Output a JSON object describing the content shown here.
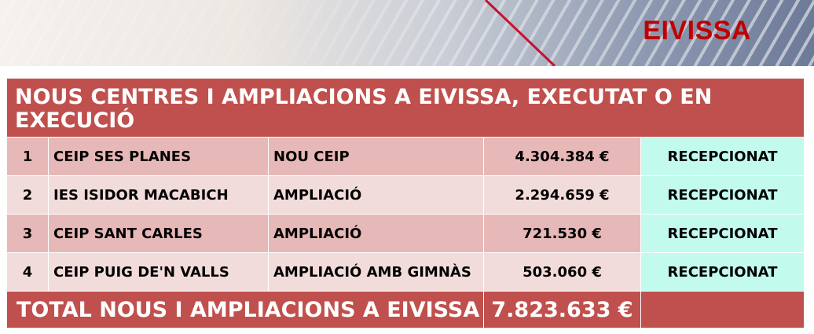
{
  "banner": {
    "region": "EIVISSA",
    "accent_color": "#c00000"
  },
  "table": {
    "title": "NOUS CENTRES I AMPLIACIONS A EIVISSA, EXECUTAT O EN EXECUCIÓ",
    "header_color": "#c0504d",
    "rows": [
      {
        "num": "1",
        "centre": "CEIP SES PLANES",
        "type": "NOU CEIP",
        "amount": "4.304.384 €",
        "status": "RECEPCIONAT"
      },
      {
        "num": "2",
        "centre": "IES ISIDOR MACABICH",
        "type": "AMPLIACIÓ",
        "amount": "2.294.659 €",
        "status": "RECEPCIONAT"
      },
      {
        "num": "3",
        "centre": "CEIP SANT CARLES",
        "type": "AMPLIACIÓ",
        "amount": "721.530 €",
        "status": "RECEPCIONAT"
      },
      {
        "num": "4",
        "centre": "CEIP PUIG DE'N VALLS",
        "type": "AMPLIACIÓ AMB GIMNÀS",
        "amount": "503.060 €",
        "status": "RECEPCIONAT"
      }
    ],
    "total": {
      "label": "TOTAL NOUS I AMPLIACIONS A EIVISSA",
      "amount": "7.823.633 €"
    }
  }
}
